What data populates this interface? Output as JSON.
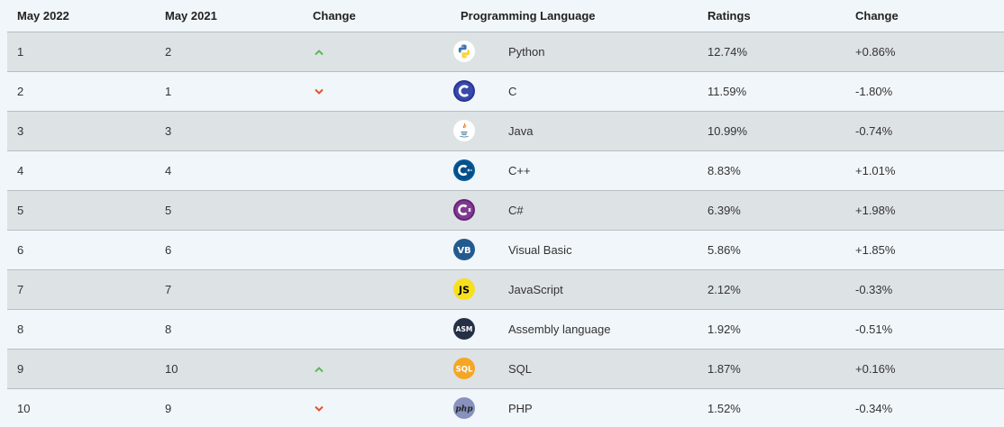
{
  "headers": {
    "may2022": "May 2022",
    "may2021": "May 2021",
    "change": "Change",
    "language": "Programming Language",
    "ratings": "Ratings",
    "change_pct": "Change"
  },
  "colors": {
    "up": "#5cb85c",
    "down": "#e4522d"
  },
  "rows": [
    {
      "rank2022": "1",
      "rank2021": "2",
      "trend": "up",
      "icon": "python-logo-icon",
      "language": "Python",
      "rating": "12.74%",
      "change": "+0.86%"
    },
    {
      "rank2022": "2",
      "rank2021": "1",
      "trend": "down",
      "icon": "c-logo-icon",
      "language": "C",
      "rating": "11.59%",
      "change": "-1.80%"
    },
    {
      "rank2022": "3",
      "rank2021": "3",
      "trend": "none",
      "icon": "java-logo-icon",
      "language": "Java",
      "rating": "10.99%",
      "change": "-0.74%"
    },
    {
      "rank2022": "4",
      "rank2021": "4",
      "trend": "none",
      "icon": "cpp-logo-icon",
      "language": "C++",
      "rating": "8.83%",
      "change": "+1.01%"
    },
    {
      "rank2022": "5",
      "rank2021": "5",
      "trend": "none",
      "icon": "csharp-logo-icon",
      "language": "C#",
      "rating": "6.39%",
      "change": "+1.98%"
    },
    {
      "rank2022": "6",
      "rank2021": "6",
      "trend": "none",
      "icon": "visual-basic-logo-icon",
      "language": "Visual Basic",
      "rating": "5.86%",
      "change": "+1.85%"
    },
    {
      "rank2022": "7",
      "rank2021": "7",
      "trend": "none",
      "icon": "javascript-logo-icon",
      "language": "JavaScript",
      "rating": "2.12%",
      "change": "-0.33%"
    },
    {
      "rank2022": "8",
      "rank2021": "8",
      "trend": "none",
      "icon": "assembly-logo-icon",
      "language": "Assembly language",
      "rating": "1.92%",
      "change": "-0.51%"
    },
    {
      "rank2022": "9",
      "rank2021": "10",
      "trend": "up",
      "icon": "sql-logo-icon",
      "language": "SQL",
      "rating": "1.87%",
      "change": "+0.16%"
    },
    {
      "rank2022": "10",
      "rank2021": "9",
      "trend": "down",
      "icon": "php-logo-icon",
      "language": "PHP",
      "rating": "1.52%",
      "change": "-0.34%"
    }
  ]
}
